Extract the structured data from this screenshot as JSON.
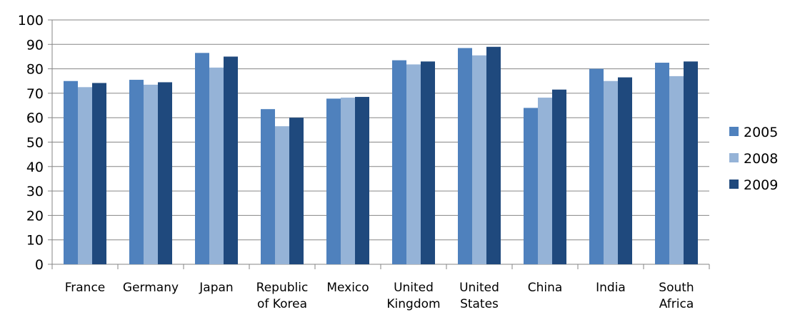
{
  "chart_data": {
    "type": "bar",
    "title": "",
    "xlabel": "",
    "ylabel": "",
    "ylim": [
      0,
      100
    ],
    "yticks": [
      0,
      10,
      20,
      30,
      40,
      50,
      60,
      70,
      80,
      90,
      100
    ],
    "grid": true,
    "legend_position": "right",
    "categories": [
      [
        "France"
      ],
      [
        "Germany"
      ],
      [
        "Japan"
      ],
      [
        "Republic",
        "of Korea"
      ],
      [
        "Mexico"
      ],
      [
        "United",
        "Kingdom"
      ],
      [
        "United",
        "States"
      ],
      [
        "China"
      ],
      [
        "India"
      ],
      [
        "South",
        "Africa"
      ]
    ],
    "series": [
      {
        "name": "2005",
        "color": "#4f81bd",
        "values": [
          75,
          75.5,
          86.5,
          63.5,
          67.8,
          83.5,
          88.5,
          64,
          80,
          82.5
        ]
      },
      {
        "name": "2008",
        "color": "#95b3d7",
        "values": [
          72.5,
          73.5,
          80.5,
          56.5,
          68.2,
          81.8,
          85.5,
          68.2,
          75,
          77
        ]
      },
      {
        "name": "2009",
        "color": "#1f497d",
        "values": [
          74.2,
          74.5,
          85,
          60,
          68.5,
          83,
          89,
          71.5,
          76.5,
          83
        ]
      }
    ]
  }
}
